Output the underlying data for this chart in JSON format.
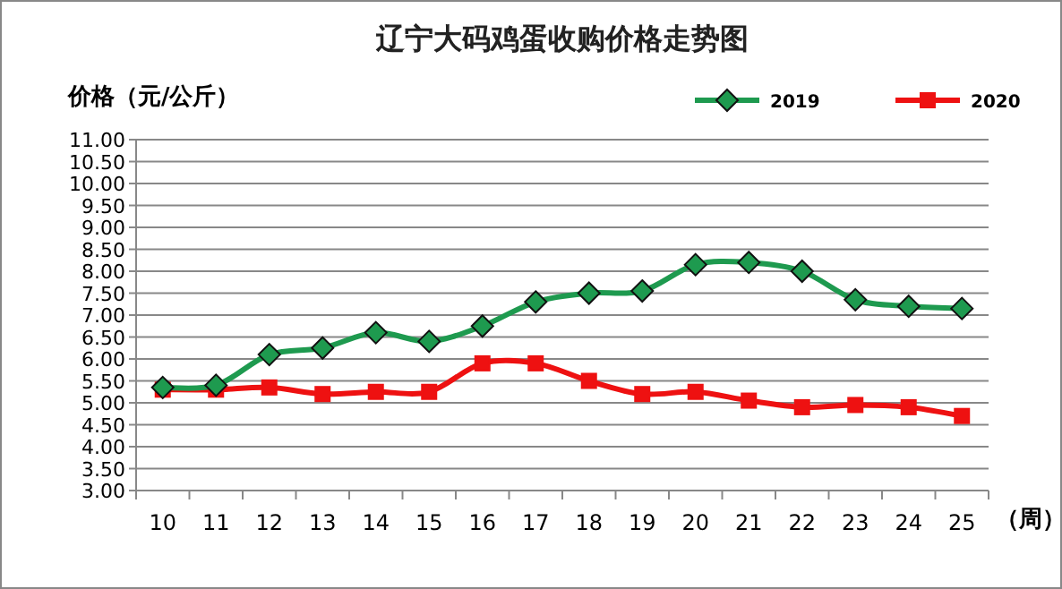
{
  "chart_data": {
    "type": "line",
    "title": "辽宁大码鸡蛋收购价格走势图",
    "ylabel": "价格（元/公斤）",
    "xlabel": "（周）",
    "categories": [
      "10",
      "11",
      "12",
      "13",
      "14",
      "15",
      "16",
      "17",
      "18",
      "19",
      "20",
      "21",
      "22",
      "23",
      "24",
      "25"
    ],
    "series": [
      {
        "name": "2019",
        "color": "#1e9a4f",
        "marker": "diamond",
        "values": [
          5.35,
          5.4,
          6.1,
          6.25,
          6.6,
          6.4,
          6.75,
          7.3,
          7.5,
          7.55,
          8.15,
          8.2,
          8.0,
          7.35,
          7.2,
          7.15
        ]
      },
      {
        "name": "2020",
        "color": "#ee1111",
        "marker": "square",
        "values": [
          5.3,
          5.3,
          5.35,
          5.2,
          5.25,
          5.25,
          5.9,
          5.9,
          5.5,
          5.2,
          5.25,
          5.05,
          4.9,
          4.95,
          4.9,
          4.7
        ]
      }
    ],
    "ylim": [
      3,
      11
    ],
    "yticks": [
      {
        "value": 3,
        "label": "3.00"
      },
      {
        "value": 3.5,
        "label": "3.50"
      },
      {
        "value": 4,
        "label": "4.00"
      },
      {
        "value": 4.5,
        "label": "4.50"
      },
      {
        "value": 5,
        "label": "5.00"
      },
      {
        "value": 5.5,
        "label": "5.50"
      },
      {
        "value": 6,
        "label": "6.00"
      },
      {
        "value": 6.5,
        "label": "6.50"
      },
      {
        "value": 7,
        "label": "7.00"
      },
      {
        "value": 7.5,
        "label": "7.50"
      },
      {
        "value": 8,
        "label": "8.00"
      },
      {
        "value": 8.5,
        "label": "8.50"
      },
      {
        "value": 9,
        "label": "9.00"
      },
      {
        "value": 9.5,
        "label": "9.50"
      },
      {
        "value": 10,
        "label": "10.00"
      },
      {
        "value": 10.5,
        "label": "10.50"
      },
      {
        "value": 11,
        "label": "11.00"
      }
    ],
    "grid": "y",
    "legend": "top right",
    "line_style": "solid"
  }
}
